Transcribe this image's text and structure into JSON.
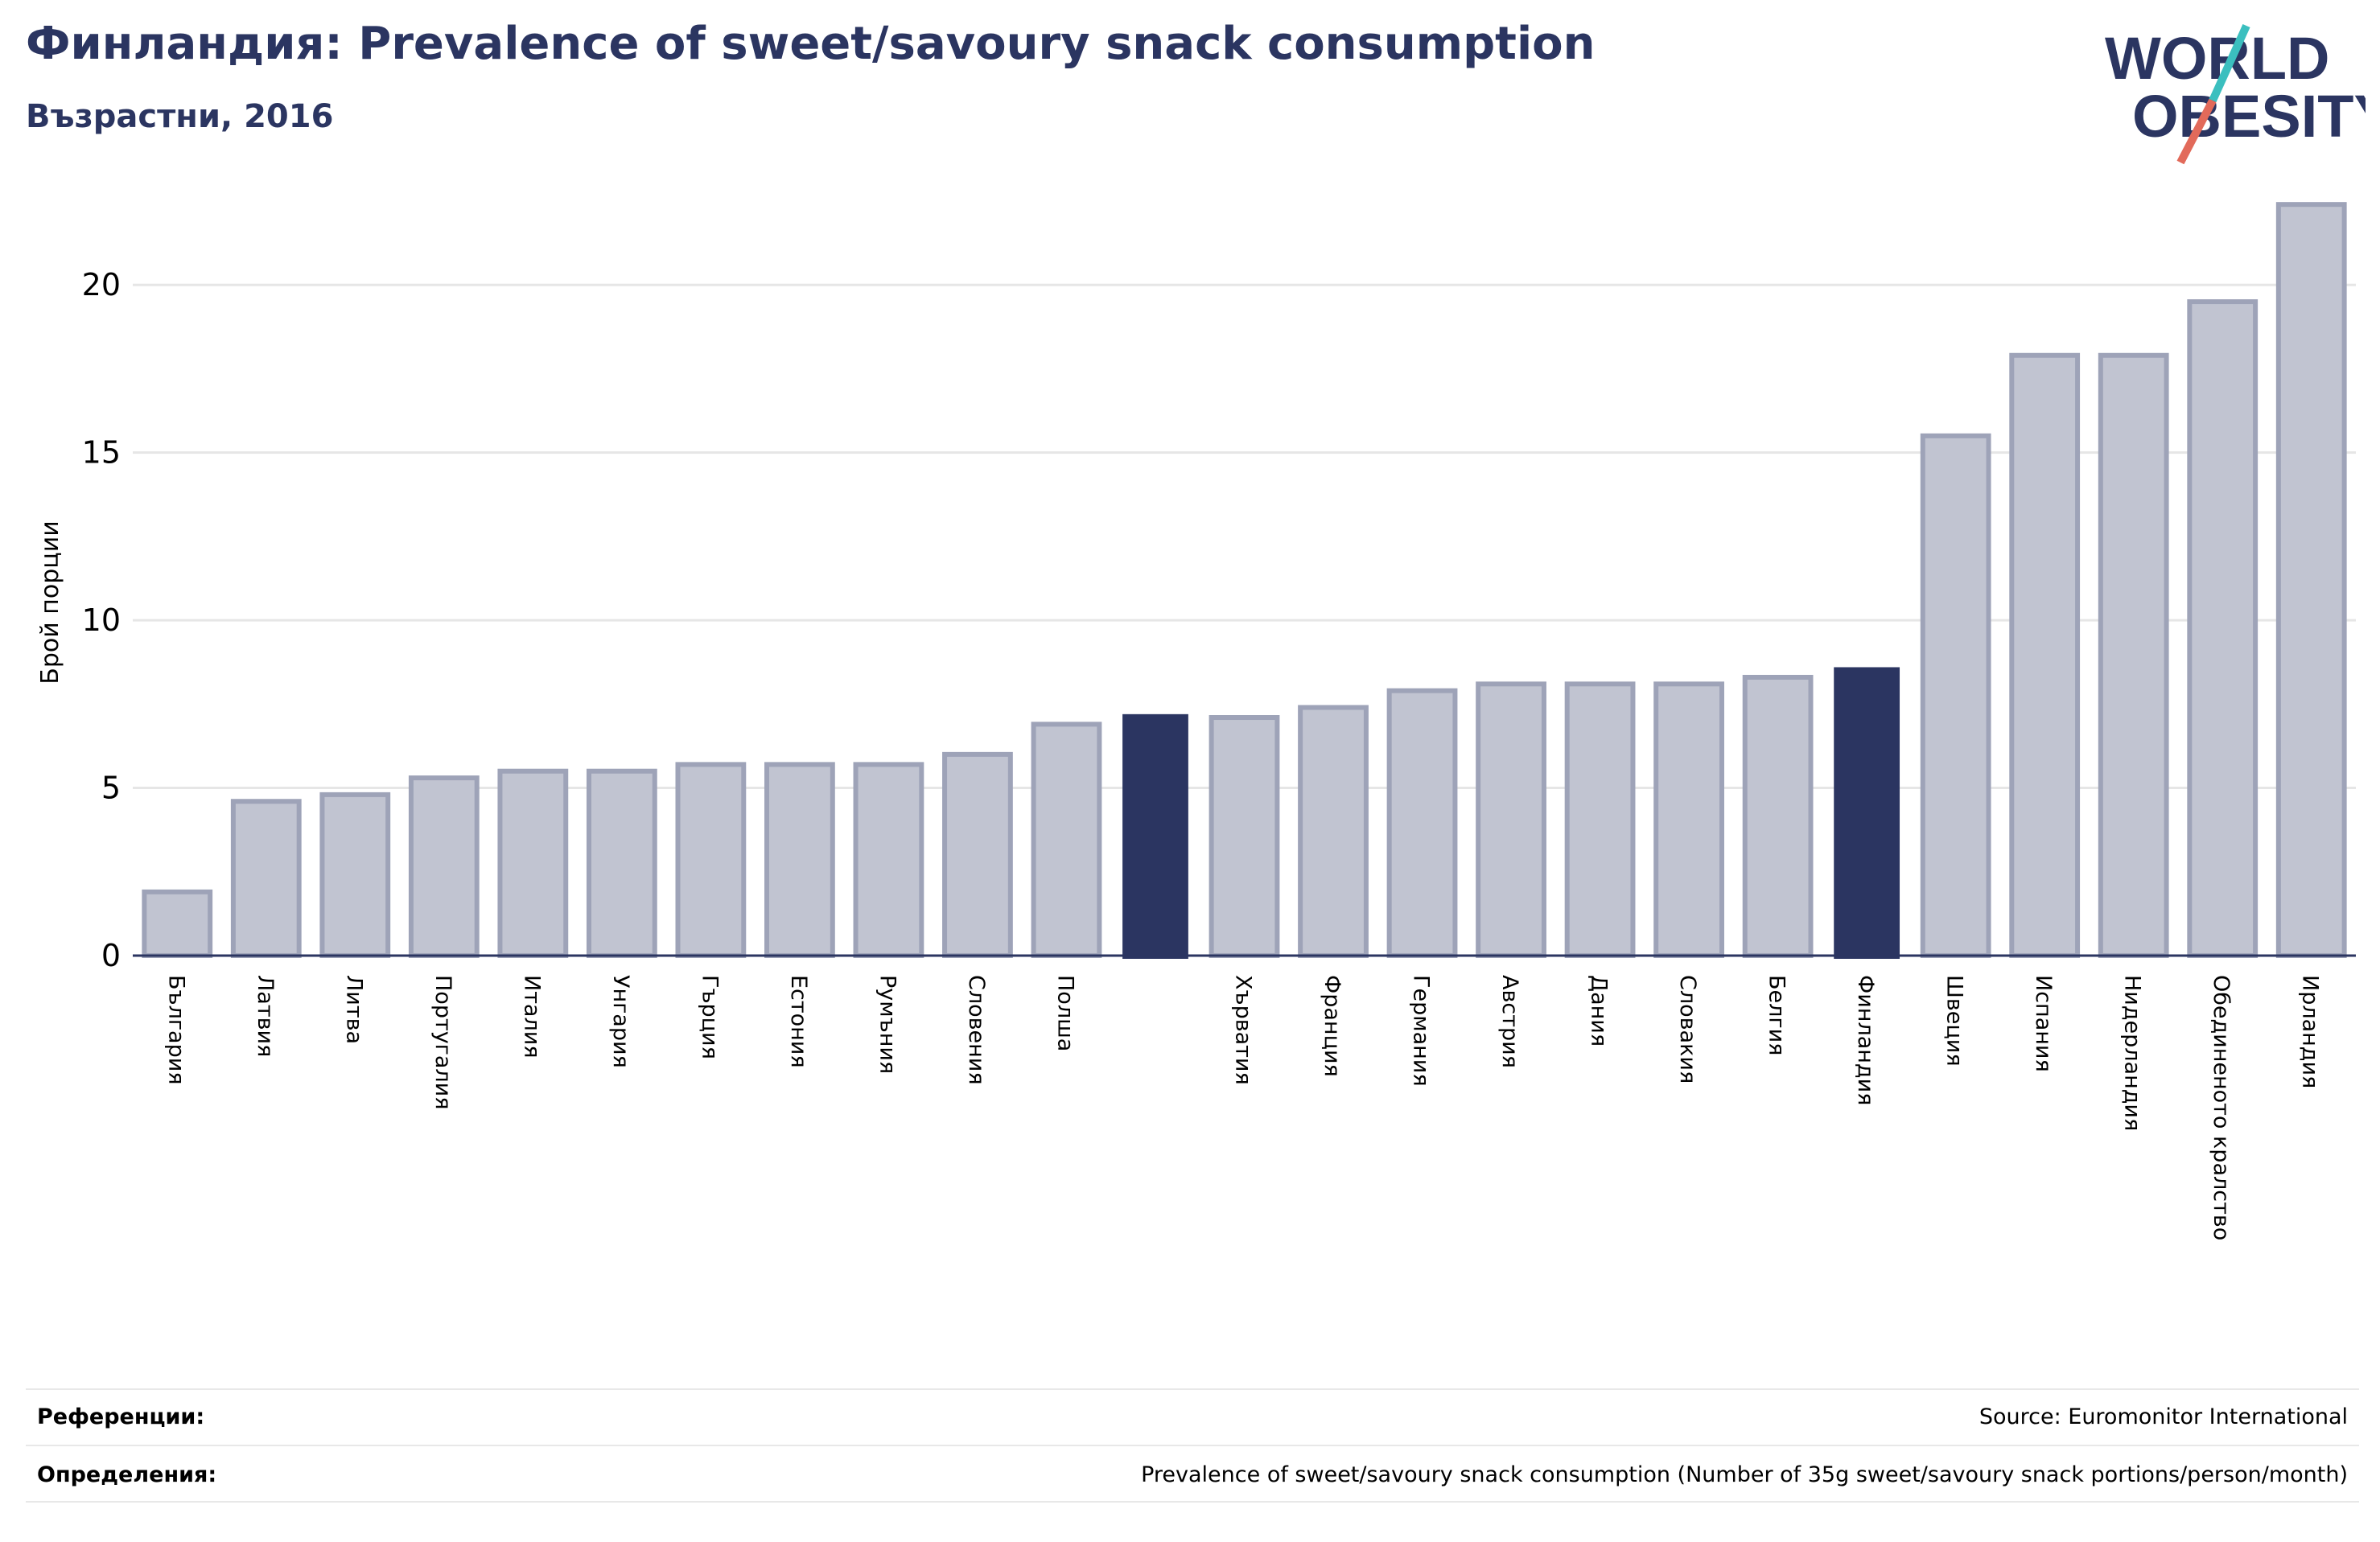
{
  "title": "Финландия: Prevalence of sweet/savoury snack consumption",
  "subtitle": "Възрастни, 2016",
  "logo": {
    "line1": "WORLD",
    "line2": "OBESITY",
    "colors": {
      "text": "#2b3561",
      "slash_top": "#3bbfbf",
      "slash_bottom": "#e26a5a"
    }
  },
  "colors": {
    "bar": "#c1c4d1",
    "bar_edge": "#9ea3b8",
    "highlight": "#2b3561",
    "axis": "#2b3561",
    "grid": "#e6e6e6"
  },
  "chart_data": {
    "type": "bar",
    "ylabel": "Брой порции",
    "xlabel": "",
    "ylim": [
      0,
      22.5
    ],
    "yticks": [
      0,
      5,
      10,
      15,
      20
    ],
    "grid": true,
    "categories": [
      "България",
      "Латвия",
      "Литва",
      "Португалия",
      "Италия",
      "Унгария",
      "Гърция",
      "Естония",
      "Румъния",
      "Словения",
      "Полша",
      "",
      "Хърватия",
      "Франция",
      "Германия",
      "Австрия",
      "Дания",
      "Словакия",
      "Белгия",
      "Финландия",
      "Швеция",
      "Испания",
      "Нидерландия",
      "Обединеното кралство",
      "Ирландия"
    ],
    "values": [
      1.9,
      4.6,
      4.8,
      5.3,
      5.5,
      5.5,
      5.7,
      5.7,
      5.7,
      6.0,
      6.9,
      7.2,
      7.1,
      7.4,
      7.9,
      8.1,
      8.1,
      8.1,
      8.3,
      8.6,
      15.5,
      17.9,
      17.9,
      19.5,
      22.4
    ],
    "highlighted": [
      11,
      19
    ]
  },
  "footer": {
    "references_label": "Референции:",
    "references_text": "Source: Euromonitor International",
    "definitions_label": "Определения:",
    "definitions_text": "Prevalence of sweet/savoury snack consumption (Number of 35g sweet/savoury snack portions/person/month)"
  }
}
